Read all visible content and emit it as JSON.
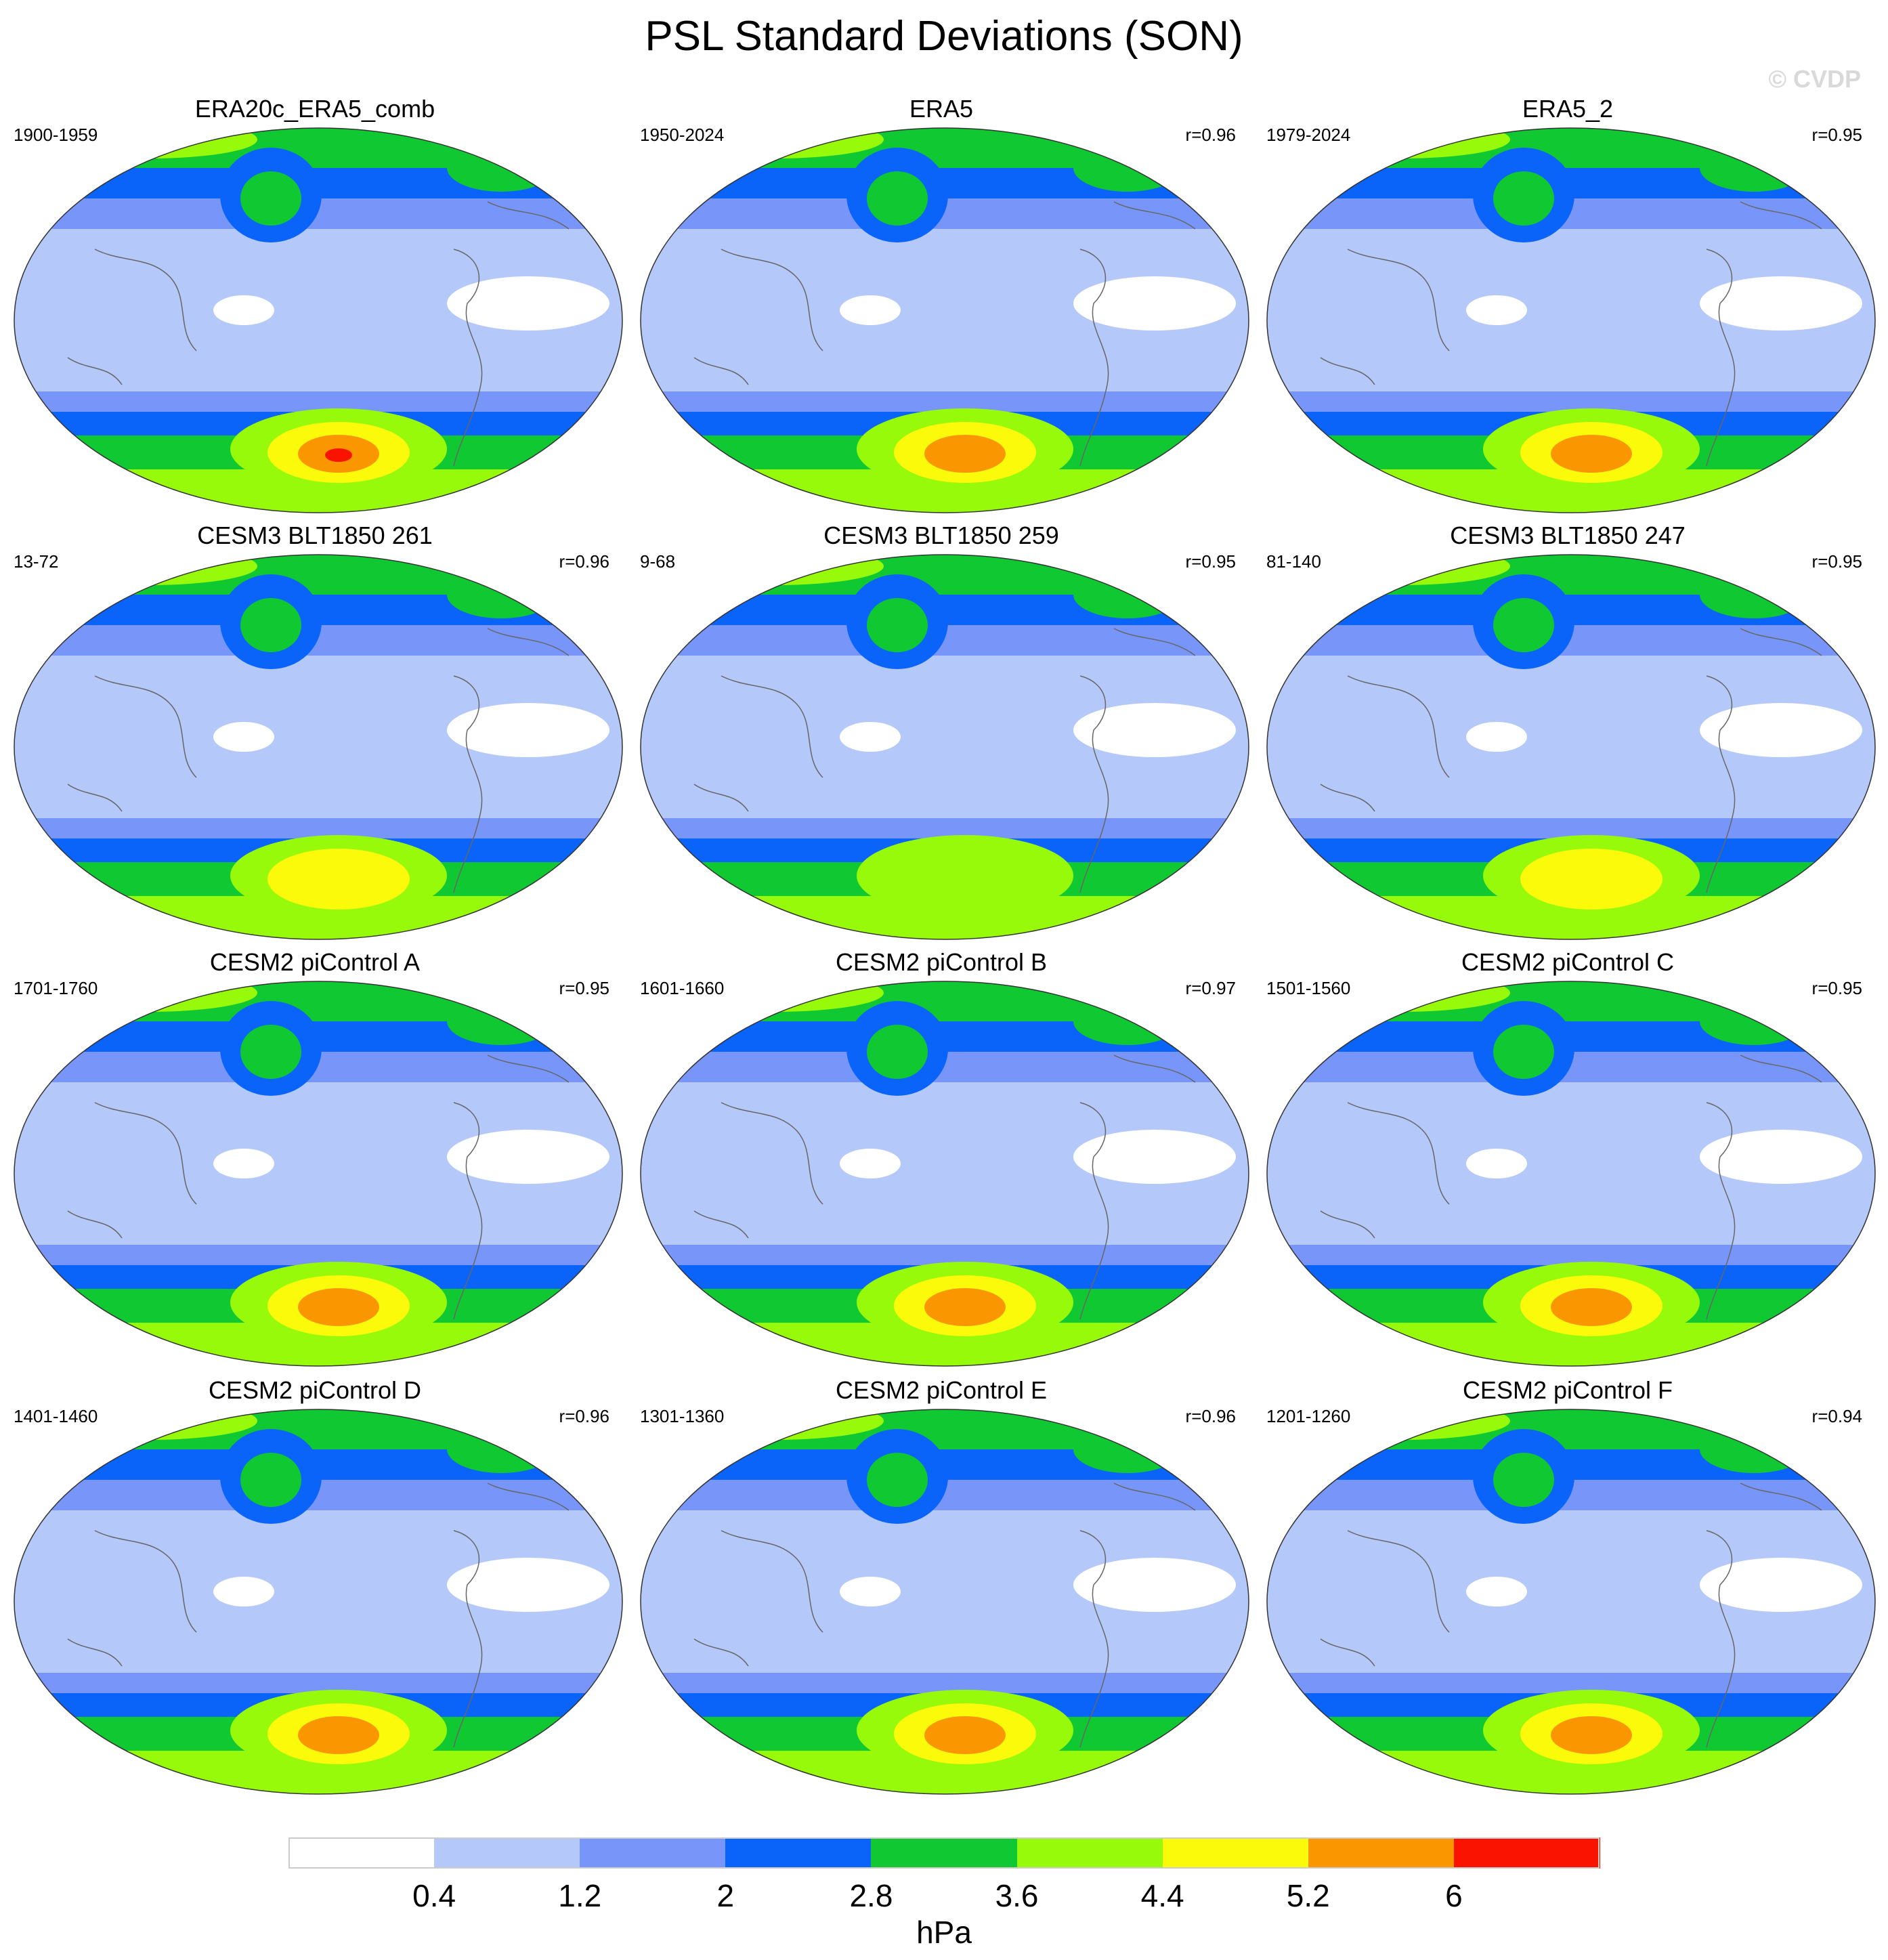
{
  "title": "PSL Standard Deviations (SON)",
  "credit": "© CVDP",
  "colorbar": {
    "colors": [
      "#ffffff",
      "#b4c8fa",
      "#7896fa",
      "#0a64fa",
      "#10c832",
      "#96fa0a",
      "#fafa0a",
      "#fa9600",
      "#fa1400"
    ],
    "labels": [
      "0.4",
      "1.2",
      "2",
      "2.8",
      "3.6",
      "4.4",
      "5.2",
      "6"
    ],
    "unit": "hPa"
  },
  "panels": [
    {
      "title": "ERA20c_ERA5_comb",
      "period": "1900-1959",
      "r": "",
      "max_level": 8
    },
    {
      "title": "ERA5",
      "period": "1950-2024",
      "r": "r=0.96",
      "max_level": 7
    },
    {
      "title": "ERA5_2",
      "period": "1979-2024",
      "r": "r=0.95",
      "max_level": 7
    },
    {
      "title": "CESM3 BLT1850 261",
      "period": "13-72",
      "r": "r=0.96",
      "max_level": 6
    },
    {
      "title": "CESM3 BLT1850 259",
      "period": "9-68",
      "r": "r=0.95",
      "max_level": 5
    },
    {
      "title": "CESM3 BLT1850 247",
      "period": "81-140",
      "r": "r=0.95",
      "max_level": 6
    },
    {
      "title": "CESM2 piControl A",
      "period": "1701-1760",
      "r": "r=0.95",
      "max_level": 7
    },
    {
      "title": "CESM2 piControl B",
      "period": "1601-1660",
      "r": "r=0.97",
      "max_level": 7
    },
    {
      "title": "CESM2 piControl C",
      "period": "1501-1560",
      "r": "r=0.95",
      "max_level": 7
    },
    {
      "title": "CESM2 piControl D",
      "period": "1401-1460",
      "r": "r=0.96",
      "max_level": 7
    },
    {
      "title": "CESM2 piControl E",
      "period": "1301-1360",
      "r": "r=0.96",
      "max_level": 7
    },
    {
      "title": "CESM2 piControl F",
      "period": "1201-1260",
      "r": "r=0.94",
      "max_level": 7
    }
  ]
}
